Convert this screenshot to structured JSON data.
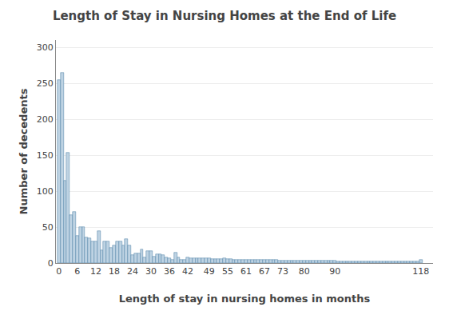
{
  "chart_data": {
    "type": "bar",
    "title": "Length of Stay in Nursing Homes at the End of Life",
    "xlabel": "Length of stay in nursing homes in months",
    "ylabel": "Number of decedents",
    "color": "#bed3e3",
    "x": [
      0,
      1,
      2,
      3,
      4,
      5,
      6,
      7,
      8,
      9,
      10,
      11,
      12,
      13,
      14,
      15,
      16,
      17,
      18,
      19,
      20,
      21,
      22,
      23,
      24,
      25,
      26,
      27,
      28,
      29,
      30,
      31,
      32,
      33,
      34,
      35,
      36,
      37,
      38,
      39,
      40,
      41,
      42,
      43,
      44,
      45,
      46,
      47,
      48,
      49,
      50,
      51,
      52,
      53,
      54,
      55,
      56,
      57,
      58,
      59,
      60,
      61,
      62,
      63,
      64,
      65,
      66,
      67,
      68,
      69,
      70,
      71,
      72,
      73,
      74,
      75,
      76,
      77,
      78,
      79,
      80,
      81,
      82,
      83,
      84,
      85,
      86,
      87,
      88,
      89,
      90,
      91,
      92,
      93,
      94,
      95,
      96,
      97,
      98,
      99,
      100,
      101,
      102,
      103,
      104,
      105,
      106,
      107,
      108,
      109,
      110,
      111,
      112,
      113,
      114,
      115,
      116,
      117,
      118
    ],
    "values": [
      255,
      265,
      115,
      153,
      67,
      71,
      38,
      50,
      50,
      36,
      34,
      30,
      30,
      44,
      18,
      30,
      30,
      21,
      25,
      30,
      30,
      25,
      33,
      25,
      11,
      13,
      13,
      19,
      8,
      17,
      17,
      9,
      12,
      12,
      11,
      8,
      7,
      5,
      15,
      8,
      5,
      5,
      8,
      7,
      7,
      7,
      7,
      7,
      7,
      7,
      6,
      6,
      6,
      6,
      7,
      6,
      6,
      5,
      5,
      5,
      5,
      5,
      5,
      4,
      4,
      4,
      4,
      4,
      4,
      4,
      4,
      4,
      3,
      3,
      3,
      3,
      3,
      3,
      3,
      3,
      3,
      3,
      3,
      3,
      3,
      3,
      3,
      3,
      3,
      3,
      3,
      2,
      2,
      2,
      2,
      2,
      2,
      2,
      2,
      2,
      2,
      2,
      2,
      2,
      2,
      2,
      2,
      2,
      2,
      2,
      2,
      2,
      2,
      2,
      2,
      2,
      2,
      2,
      5
    ],
    "xlim": [
      -1,
      122
    ],
    "xticks": [
      0,
      6,
      12,
      18,
      24,
      30,
      36,
      42,
      49,
      55,
      61,
      67,
      73,
      80,
      90,
      118
    ],
    "ylim": [
      0,
      310
    ],
    "yticks": [
      0,
      50,
      100,
      150,
      200,
      250,
      300
    ],
    "grid": true
  }
}
